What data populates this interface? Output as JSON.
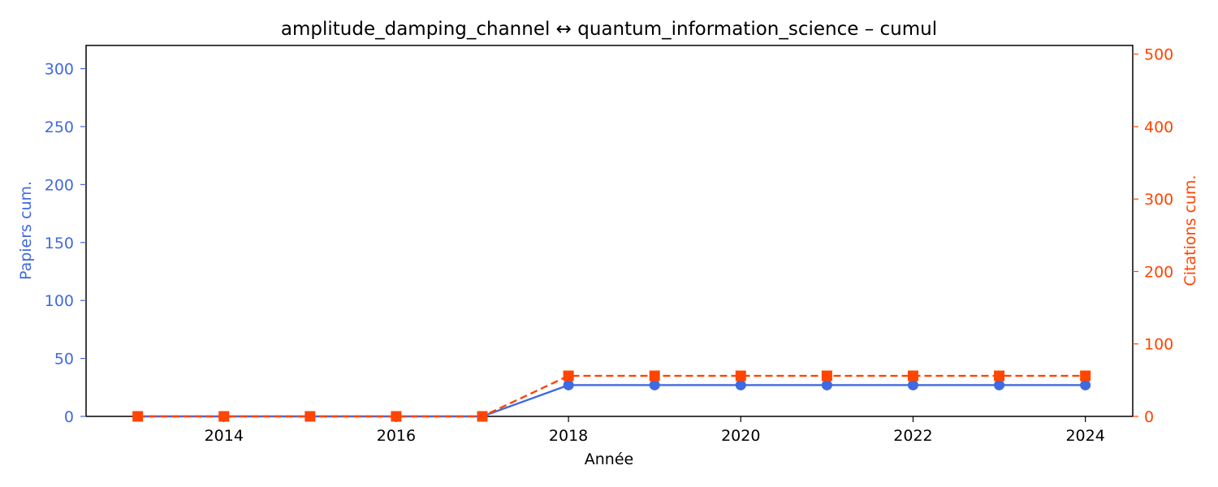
{
  "chart_data": {
    "type": "line",
    "title": "amplitude_damping_channel  ↔  quantum_information_science  –  cumul",
    "xlabel": "Année",
    "ylabel_left": "Papiers cum.",
    "ylabel_right": "Citations cum.",
    "x": [
      2013,
      2014,
      2015,
      2016,
      2017,
      2018,
      2019,
      2020,
      2021,
      2022,
      2023,
      2024
    ],
    "x_ticks": [
      2014,
      2016,
      2018,
      2020,
      2022,
      2024
    ],
    "xlim": [
      2012.4,
      2024.55
    ],
    "ylim_left": [
      0,
      320
    ],
    "yticks_left": [
      0,
      50,
      100,
      150,
      200,
      250,
      300
    ],
    "ylim_right": [
      0,
      512
    ],
    "yticks_right": [
      0,
      100,
      200,
      300,
      400,
      500
    ],
    "grid": false,
    "series": [
      {
        "name": "Papiers cum.",
        "axis": "left",
        "color": "#4169e1",
        "marker": "circle",
        "line_style": "solid",
        "values": [
          0,
          0,
          0,
          0,
          0,
          27,
          27,
          27,
          27,
          27,
          27,
          27
        ]
      },
      {
        "name": "Citations cum.",
        "axis": "right",
        "color": "#ff4500",
        "marker": "square",
        "line_style": "dashed",
        "values": [
          0,
          0,
          0,
          0,
          0,
          56,
          56,
          56,
          56,
          56,
          56,
          56
        ]
      }
    ]
  }
}
